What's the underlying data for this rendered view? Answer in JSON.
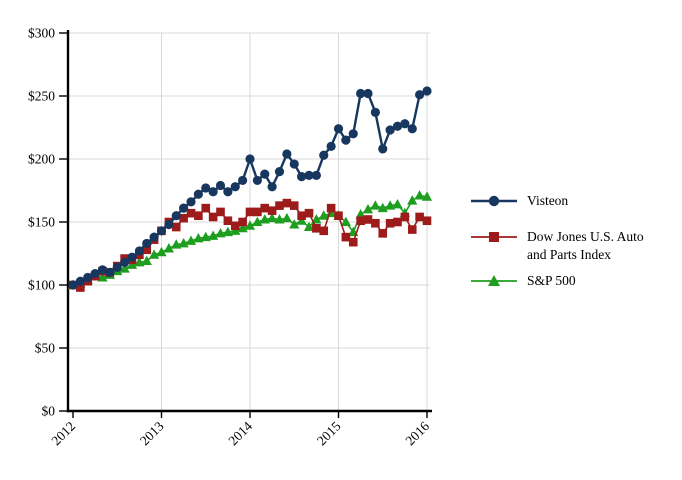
{
  "page": {
    "background": "#ffffff",
    "description": "Cumulative total stockholder return comparison line chart"
  },
  "chart_data": {
    "type": "line",
    "title": "",
    "xlabel": "",
    "ylabel": "",
    "x_unit": "month",
    "n_points": 49,
    "x_tick_labels": [
      "2012",
      "2013",
      "2014",
      "2015",
      "2016"
    ],
    "x_tick_indices": [
      0,
      12,
      24,
      36,
      48
    ],
    "y_ticks": [
      0,
      50,
      100,
      150,
      200,
      250,
      300
    ],
    "y_tick_labels": [
      "$0",
      "$50",
      "$100",
      "$150",
      "$200",
      "$250",
      "$300"
    ],
    "ylim": [
      0,
      300
    ],
    "grid": true,
    "grid_color": "#d9d9d9",
    "axis_color": "#000000",
    "legend_position": "right",
    "series": [
      {
        "name": "Visteon",
        "marker": "circle",
        "color": "#17375e",
        "line_width": 2.4,
        "values": [
          100,
          103,
          106,
          109,
          112,
          110,
          114,
          118,
          122,
          127,
          133,
          138,
          143,
          148,
          155,
          161,
          166,
          172,
          177,
          174,
          179,
          174,
          178,
          183,
          200,
          183,
          188,
          178,
          190,
          204,
          196,
          186,
          187,
          187,
          203,
          210,
          224,
          215,
          220,
          252,
          252,
          237,
          208,
          223,
          226,
          228,
          224,
          251,
          254
        ]
      },
      {
        "name": "Dow Jones U.S. Auto and Parts Index",
        "marker": "square",
        "color": "#9e1b1b",
        "line_width": 1.6,
        "values": [
          100,
          98,
          103,
          107,
          111,
          110,
          115,
          121,
          120,
          124,
          128,
          136,
          143,
          150,
          146,
          153,
          157,
          155,
          161,
          154,
          158,
          151,
          147,
          150,
          158,
          158,
          161,
          159,
          163,
          165,
          163,
          155,
          157,
          145,
          143,
          161,
          155,
          138,
          134,
          151,
          152,
          149,
          141,
          149,
          150,
          154,
          144,
          154,
          151
        ]
      },
      {
        "name": "S&P 500",
        "marker": "triangle",
        "color": "#1e9e1e",
        "line_width": 1.6,
        "values": [
          100,
          101,
          104,
          107,
          106,
          108,
          111,
          113,
          116,
          118,
          119,
          124,
          126,
          129,
          132,
          133,
          135,
          137,
          138,
          139,
          141,
          142,
          143,
          145,
          147,
          150,
          152,
          153,
          152,
          153,
          148,
          151,
          146,
          152,
          155,
          157,
          155,
          150,
          142,
          156,
          160,
          163,
          161,
          163,
          164,
          157,
          167,
          171,
          170
        ]
      }
    ]
  }
}
